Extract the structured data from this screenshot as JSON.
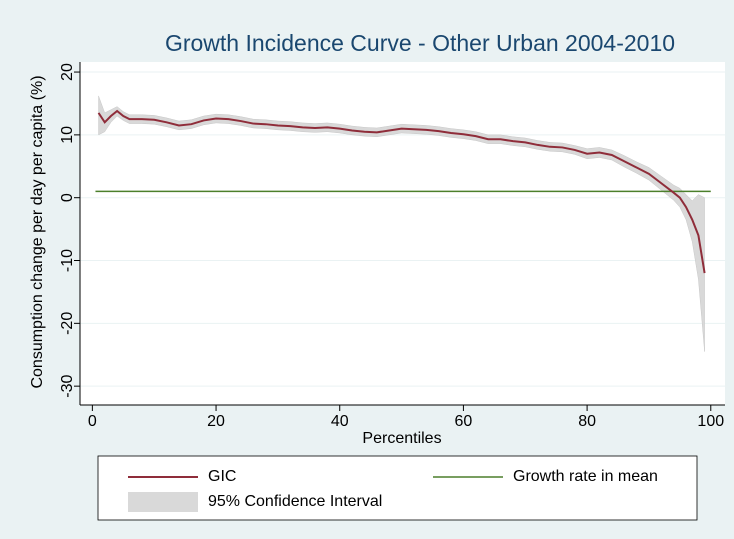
{
  "chart_data": {
    "type": "line",
    "title": "Growth Incidence Curve - Other Urban 2004-2010",
    "x_label": "Percentiles",
    "y_label": "Consumption change per day per capita (%)",
    "xlim": [
      -2,
      102.3
    ],
    "ylim": [
      -33,
      21.6
    ],
    "xticks": [
      0,
      20,
      40,
      60,
      80,
      100
    ],
    "yticks": [
      -30,
      -20,
      -10,
      0,
      10,
      20
    ],
    "grid": true,
    "legend": "bottom",
    "band": {
      "name": "95% Confidence Interval",
      "color": "#d9d9d9",
      "x": [
        1,
        2,
        3,
        4,
        5,
        6,
        8,
        10,
        12,
        14,
        16,
        18,
        20,
        22,
        24,
        26,
        28,
        30,
        32,
        34,
        36,
        38,
        40,
        42,
        44,
        46,
        48,
        50,
        52,
        54,
        56,
        58,
        60,
        62,
        64,
        66,
        68,
        70,
        72,
        74,
        76,
        78,
        80,
        82,
        84,
        86,
        88,
        90,
        92,
        94,
        95,
        96,
        97,
        98,
        99
      ],
      "upper": [
        16.2,
        13.5,
        14,
        14.5,
        13.7,
        13.2,
        13.2,
        13.1,
        12.7,
        12.2,
        12.4,
        13,
        13.3,
        13.2,
        12.9,
        12.5,
        12.4,
        12.2,
        12.1,
        11.9,
        11.8,
        11.9,
        11.7,
        11.4,
        11.2,
        11.1,
        11.4,
        11.7,
        11.6,
        11.5,
        11.3,
        11,
        10.8,
        10.5,
        10,
        10,
        9.7,
        9.5,
        9.1,
        8.8,
        8.7,
        8.3,
        7.8,
        8,
        7.6,
        6.7,
        5.7,
        4.8,
        3.4,
        2,
        1.5,
        0.5,
        -0.5,
        0.5,
        0
      ],
      "lower": [
        10,
        10.5,
        12,
        13,
        12.3,
        11.8,
        11.8,
        11.7,
        11.3,
        10.8,
        11,
        11.6,
        11.9,
        11.8,
        11.5,
        11.1,
        11,
        10.8,
        10.7,
        10.5,
        10.4,
        10.5,
        10.3,
        10,
        9.8,
        9.7,
        10,
        10.3,
        10.2,
        10.1,
        9.9,
        9.6,
        9.4,
        9.1,
        8.6,
        8.6,
        8.3,
        8.1,
        7.7,
        7.4,
        7.3,
        6.9,
        6.2,
        6.4,
        6,
        4.9,
        3.9,
        2.8,
        1.2,
        -0.4,
        -1.5,
        -3.5,
        -7,
        -13,
        -24.5
      ]
    },
    "series": [
      {
        "name": "GIC",
        "color": "#8f2d3a",
        "x": [
          1,
          2,
          3,
          4,
          5,
          6,
          8,
          10,
          12,
          14,
          16,
          18,
          20,
          22,
          24,
          26,
          28,
          30,
          32,
          34,
          36,
          38,
          40,
          42,
          44,
          46,
          48,
          50,
          52,
          54,
          56,
          58,
          60,
          62,
          64,
          66,
          68,
          70,
          72,
          74,
          76,
          78,
          80,
          82,
          84,
          86,
          88,
          90,
          92,
          94,
          95,
          96,
          97,
          98,
          99
        ],
        "values": [
          13.5,
          12,
          13,
          13.8,
          13,
          12.5,
          12.5,
          12.4,
          12,
          11.5,
          11.7,
          12.3,
          12.6,
          12.5,
          12.2,
          11.8,
          11.7,
          11.5,
          11.4,
          11.2,
          11.1,
          11.2,
          11,
          10.7,
          10.5,
          10.4,
          10.7,
          11,
          10.9,
          10.8,
          10.6,
          10.3,
          10.1,
          9.8,
          9.3,
          9.3,
          9,
          8.8,
          8.4,
          8.1,
          8,
          7.6,
          7,
          7.2,
          6.8,
          5.8,
          4.8,
          3.8,
          2.3,
          0.8,
          0,
          -1.5,
          -3.5,
          -6,
          -12
        ]
      },
      {
        "name": "Growth rate in mean",
        "color": "#4b7f2b",
        "x": [
          0.5,
          100
        ],
        "values": [
          1,
          1
        ]
      }
    ]
  }
}
